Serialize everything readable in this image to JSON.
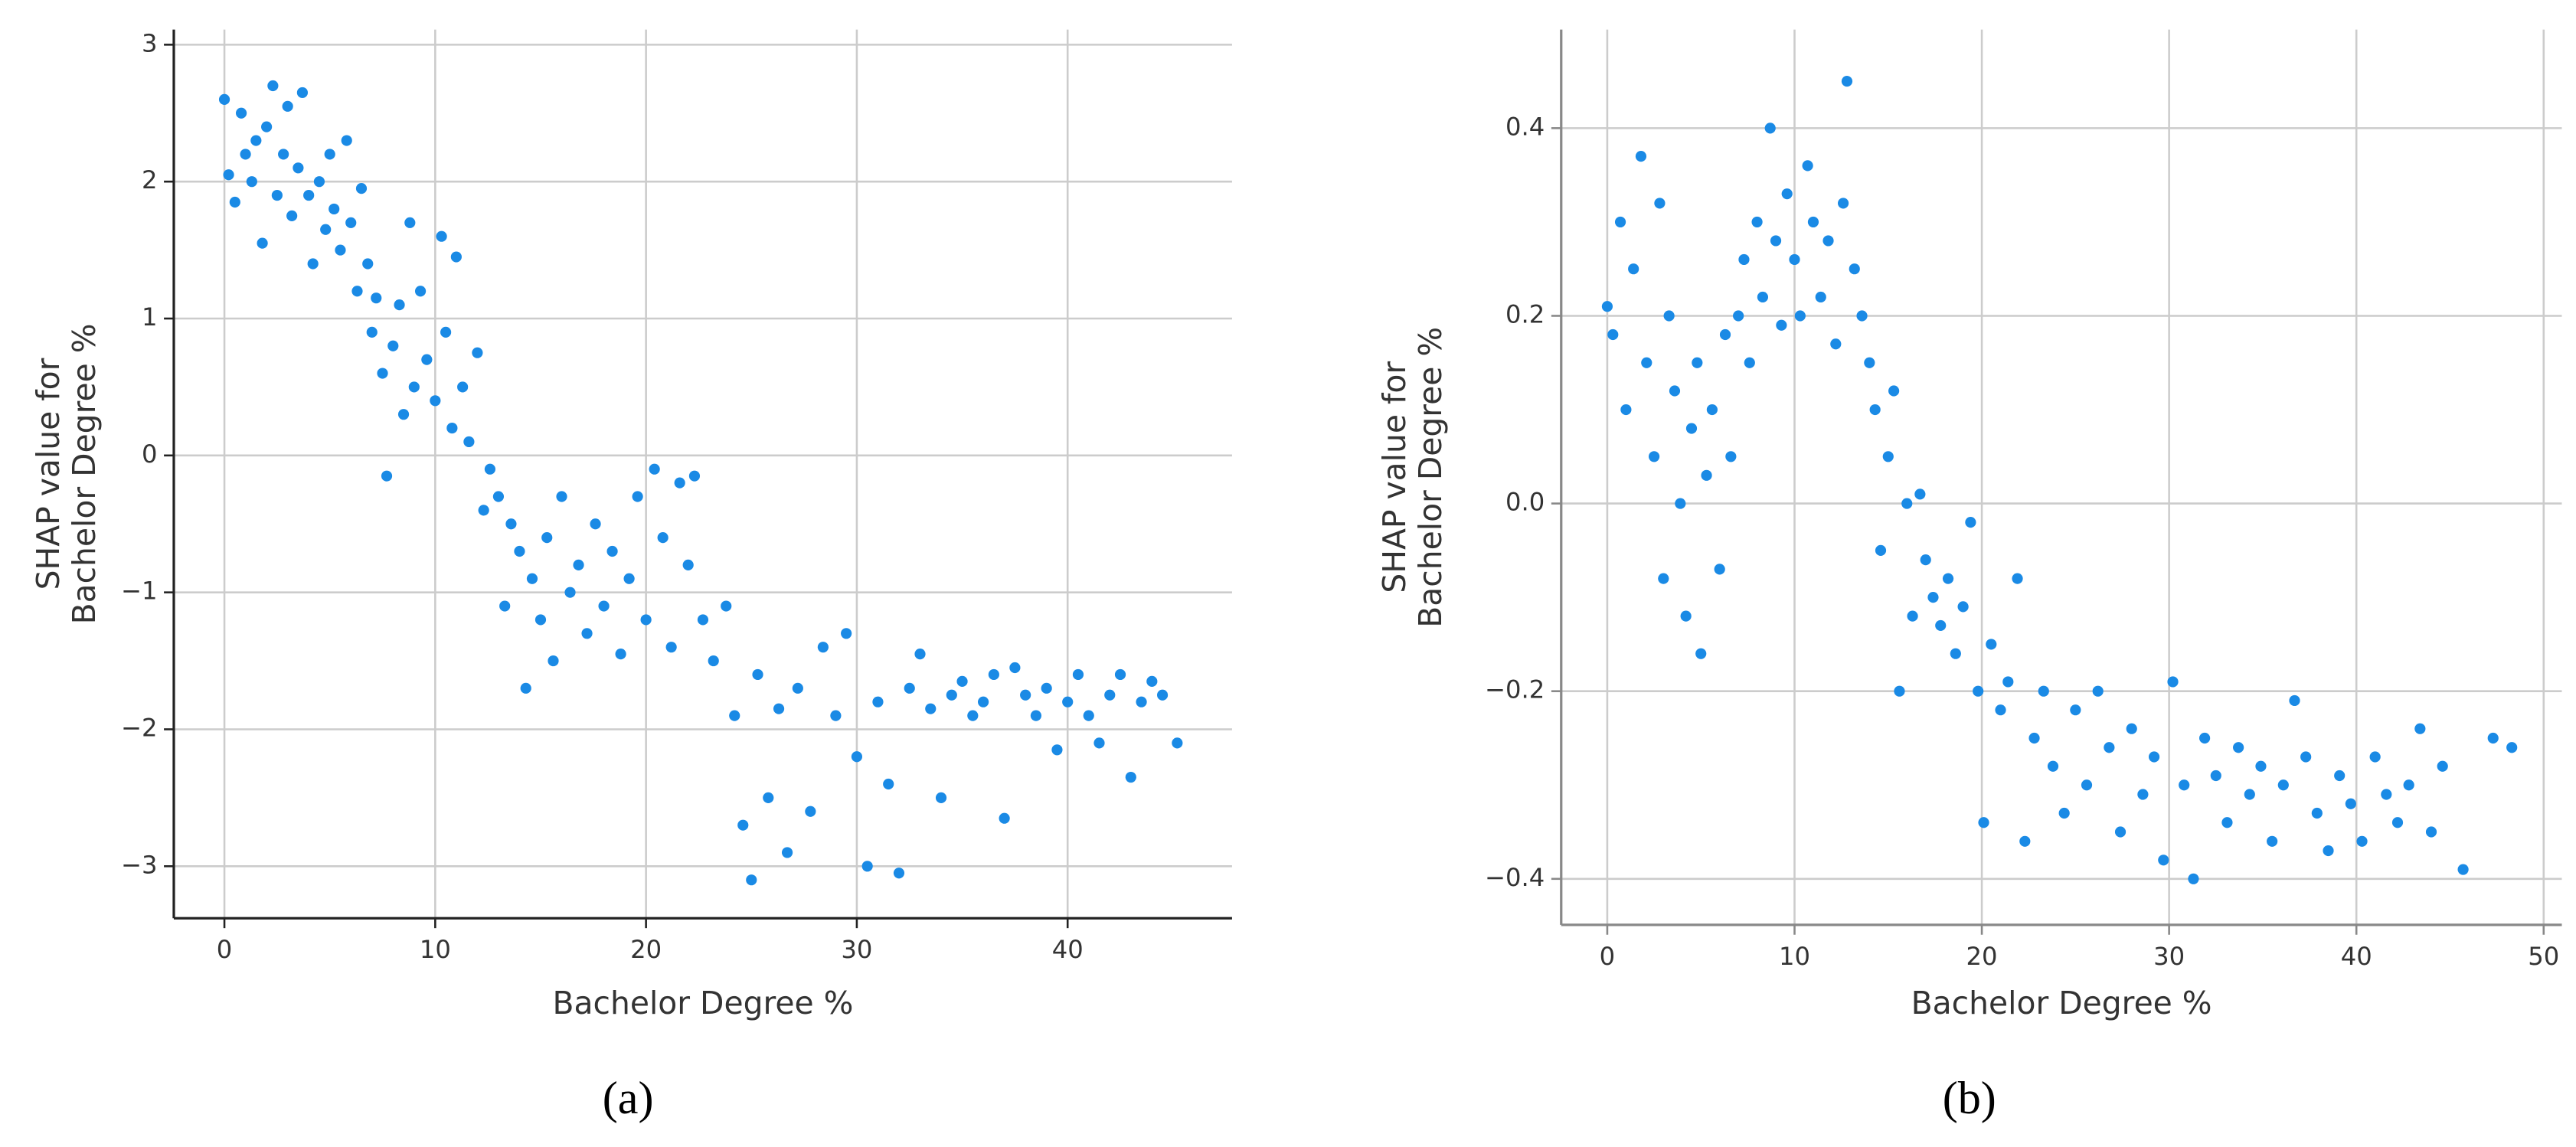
{
  "chart_data": [
    {
      "type": "scatter",
      "caption": "(a)",
      "xlabel": "Bachelor Degree %",
      "ylabel": [
        "SHAP value for",
        "Bachelor Degree %"
      ],
      "color": "#1a8ae5",
      "grid": true,
      "axis_color": "#222",
      "xlim": [
        -2.4,
        47.8
      ],
      "ylim": [
        -3.38,
        3.11
      ],
      "xticks": [
        0,
        10,
        20,
        30,
        40
      ],
      "yticks": [
        {
          "value": -3,
          "label": "−3"
        },
        {
          "value": -2,
          "label": "−2"
        },
        {
          "value": -1,
          "label": "−1"
        },
        0,
        1,
        2,
        3
      ],
      "x": [
        0,
        0.2,
        0.5,
        0.8,
        1,
        1.3,
        1.5,
        1.8,
        2,
        2.3,
        2.5,
        2.8,
        3,
        3.2,
        3.5,
        3.7,
        4,
        4.2,
        4.5,
        4.8,
        5,
        5.2,
        5.5,
        5.8,
        6,
        6.3,
        6.5,
        6.8,
        7,
        7.2,
        7.5,
        7.7,
        8,
        8.3,
        8.5,
        8.8,
        9,
        9.3,
        9.6,
        10,
        10.3,
        10.5,
        10.8,
        11,
        11.3,
        11.6,
        12,
        12.3,
        12.6,
        13,
        13.3,
        13.6,
        14,
        14.3,
        14.6,
        15,
        15.3,
        15.6,
        16,
        16.4,
        16.8,
        17.2,
        17.6,
        18,
        18.4,
        18.8,
        19.2,
        19.6,
        20,
        20.4,
        20.8,
        21.2,
        21.6,
        22,
        22.3,
        22.7,
        23.2,
        23.8,
        24.2,
        24.6,
        25,
        25.3,
        25.8,
        26.3,
        26.7,
        27.2,
        27.8,
        28.4,
        29,
        29.5,
        30,
        30.5,
        31,
        31.5,
        32,
        32.5,
        33,
        33.5,
        34,
        34.5,
        35,
        35.5,
        36,
        36.5,
        37,
        37.5,
        38,
        38.5,
        39,
        39.5,
        40,
        40.5,
        41,
        41.5,
        42,
        42.5,
        43,
        43.5,
        44,
        44.5,
        45.2
      ],
      "y": [
        2.6,
        2.05,
        1.85,
        2.5,
        2.2,
        2.0,
        2.3,
        1.55,
        2.4,
        2.7,
        1.9,
        2.2,
        2.55,
        1.75,
        2.1,
        2.65,
        1.9,
        1.4,
        2.0,
        1.65,
        2.2,
        1.8,
        1.5,
        2.3,
        1.7,
        1.2,
        1.95,
        1.4,
        0.9,
        1.15,
        0.6,
        -0.15,
        0.8,
        1.1,
        0.3,
        1.7,
        0.5,
        1.2,
        0.7,
        0.4,
        1.6,
        0.9,
        0.2,
        1.45,
        0.5,
        0.1,
        0.75,
        -0.4,
        -0.1,
        -0.3,
        -1.1,
        -0.5,
        -0.7,
        -1.7,
        -0.9,
        -1.2,
        -0.6,
        -1.5,
        -0.3,
        -1.0,
        -0.8,
        -1.3,
        -0.5,
        -1.1,
        -0.7,
        -1.45,
        -0.9,
        -0.3,
        -1.2,
        -0.1,
        -0.6,
        -1.4,
        -0.2,
        -0.8,
        -0.15,
        -1.2,
        -1.5,
        -1.1,
        -1.9,
        -2.7,
        -3.1,
        -1.6,
        -2.5,
        -1.85,
        -2.9,
        -1.7,
        -2.6,
        -1.4,
        -1.9,
        -1.3,
        -2.2,
        -3.0,
        -1.8,
        -2.4,
        -3.05,
        -1.7,
        -1.45,
        -1.85,
        -2.5,
        -1.75,
        -1.65,
        -1.9,
        -1.8,
        -1.6,
        -2.65,
        -1.55,
        -1.75,
        -1.9,
        -1.7,
        -2.15,
        -1.8,
        -1.6,
        -1.9,
        -2.1,
        -1.75,
        -1.6,
        -2.35,
        -1.8,
        -1.65,
        -1.75,
        -2.1
      ]
    },
    {
      "type": "scatter",
      "caption": "(b)",
      "xlabel": "Bachelor Degree %",
      "ylabel": [
        "SHAP value for",
        "Bachelor Degree %"
      ],
      "color": "#1a8ae5",
      "grid": true,
      "axis_color": "#888",
      "xlim": [
        -2.46,
        50.97
      ],
      "ylim": [
        -0.449,
        0.505
      ],
      "xticks": [
        0,
        10,
        20,
        30,
        40,
        50
      ],
      "yticks": [
        {
          "value": -0.4,
          "label": "−0.4"
        },
        {
          "value": -0.2,
          "label": "−0.2"
        },
        {
          "value": 0,
          "label": "0.0"
        },
        0.2,
        0.4
      ],
      "x": [
        0,
        0.3,
        0.7,
        1,
        1.4,
        1.8,
        2.1,
        2.5,
        2.8,
        3,
        3.3,
        3.6,
        3.9,
        4.2,
        4.5,
        4.8,
        5,
        5.3,
        5.6,
        6,
        6.3,
        6.6,
        7,
        7.3,
        7.6,
        8,
        8.3,
        8.7,
        9,
        9.3,
        9.6,
        10,
        10.3,
        10.7,
        11,
        11.4,
        11.8,
        12.2,
        12.6,
        12.8,
        13.2,
        13.6,
        14,
        14.3,
        14.6,
        15,
        15.3,
        15.6,
        16,
        16.3,
        16.7,
        17,
        17.4,
        17.8,
        18.2,
        18.6,
        19,
        19.4,
        19.8,
        20.1,
        20.5,
        21,
        21.4,
        21.9,
        22.3,
        22.8,
        23.3,
        23.8,
        24.4,
        25,
        25.6,
        26.2,
        26.8,
        27.4,
        28,
        28.6,
        29.2,
        29.7,
        30.2,
        30.8,
        31.3,
        31.9,
        32.5,
        33.1,
        33.7,
        34.3,
        34.9,
        35.5,
        36.1,
        36.7,
        37.3,
        37.9,
        38.5,
        39.1,
        39.7,
        40.3,
        41,
        41.6,
        42.2,
        42.8,
        43.4,
        44,
        44.6,
        45.7,
        47.3,
        48.3
      ],
      "y": [
        0.21,
        0.18,
        0.3,
        0.1,
        0.25,
        0.37,
        0.15,
        0.05,
        0.32,
        -0.08,
        0.2,
        0.12,
        0.0,
        -0.12,
        0.08,
        0.15,
        -0.16,
        0.03,
        0.1,
        -0.07,
        0.18,
        0.05,
        0.2,
        0.26,
        0.15,
        0.3,
        0.22,
        0.4,
        0.28,
        0.19,
        0.33,
        0.26,
        0.2,
        0.36,
        0.3,
        0.22,
        0.28,
        0.17,
        0.32,
        0.45,
        0.25,
        0.2,
        0.15,
        0.1,
        -0.05,
        0.05,
        0.12,
        -0.2,
        0.0,
        -0.12,
        0.01,
        -0.06,
        -0.1,
        -0.13,
        -0.08,
        -0.16,
        -0.11,
        -0.02,
        -0.2,
        -0.34,
        -0.15,
        -0.22,
        -0.19,
        -0.08,
        -0.36,
        -0.25,
        -0.2,
        -0.28,
        -0.33,
        -0.22,
        -0.3,
        -0.2,
        -0.26,
        -0.35,
        -0.24,
        -0.31,
        -0.27,
        -0.38,
        -0.19,
        -0.3,
        -0.4,
        -0.25,
        -0.29,
        -0.34,
        -0.26,
        -0.31,
        -0.28,
        -0.36,
        -0.3,
        -0.21,
        -0.27,
        -0.33,
        -0.37,
        -0.29,
        -0.32,
        -0.36,
        -0.27,
        -0.31,
        -0.34,
        -0.3,
        -0.24,
        -0.35,
        -0.28,
        -0.39,
        -0.25,
        -0.26
      ]
    }
  ]
}
